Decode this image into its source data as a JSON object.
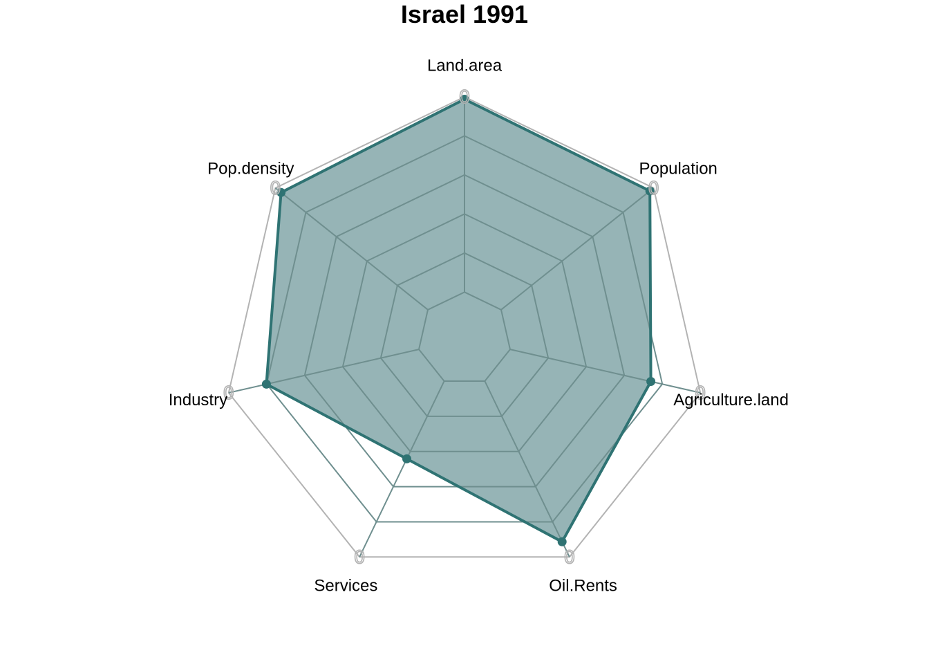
{
  "chart_data": {
    "type": "radar",
    "title": "Israel 1991",
    "axes": [
      "Land.area",
      "Population",
      "Agriculture.land",
      "Oil.Rents",
      "Services",
      "Industry",
      "Pop.density"
    ],
    "series": [
      {
        "values": [
          0.99,
          0.98,
          0.79,
          0.93,
          0.55,
          0.84,
          0.97
        ]
      }
    ],
    "axis_max_labels": [
      "0",
      "0",
      "0",
      "0",
      "0",
      "0",
      "0"
    ],
    "grid_levels": 6,
    "range": [
      0,
      1
    ],
    "colors": {
      "series_line": "#2f7373",
      "series_fill": "#96b4b6",
      "outer_grid": "#b3b3b3",
      "inner_grid": "#6f8f8f"
    }
  }
}
